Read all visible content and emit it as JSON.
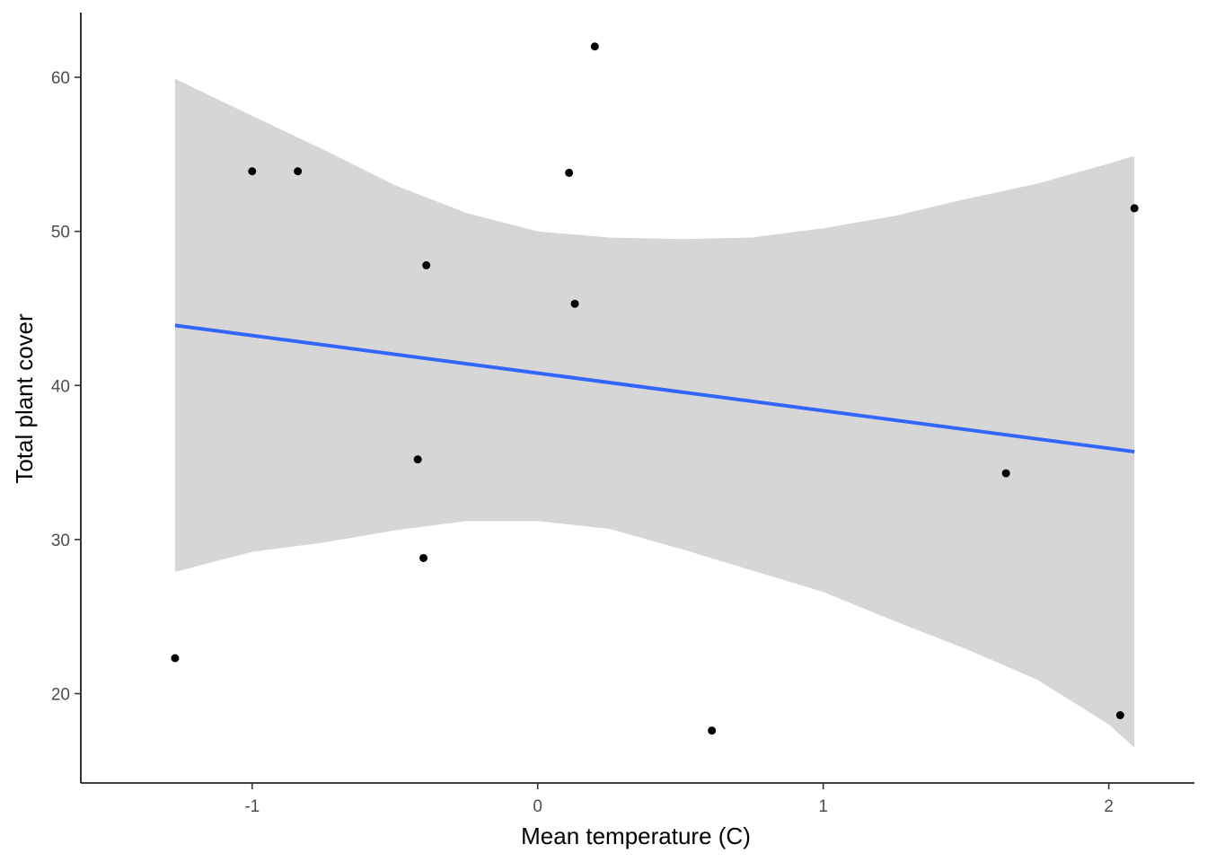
{
  "chart_data": {
    "type": "scatter",
    "title": "",
    "xlabel": "Mean temperature (C)",
    "ylabel": "Total plant cover",
    "xlim": [
      -1.6,
      2.3
    ],
    "ylim": [
      14.2,
      64.2
    ],
    "x_ticks": [
      -1,
      0,
      1,
      2
    ],
    "x_tick_labels": [
      "-1",
      "0",
      "1",
      "2"
    ],
    "y_ticks": [
      20,
      30,
      40,
      50,
      60
    ],
    "y_tick_labels": [
      "20",
      "30",
      "40",
      "50",
      "60"
    ],
    "grid": false,
    "legend": "none",
    "points": [
      {
        "x": -1.27,
        "y": 22.3
      },
      {
        "x": -1.0,
        "y": 53.9
      },
      {
        "x": -0.84,
        "y": 53.9
      },
      {
        "x": -0.39,
        "y": 47.8
      },
      {
        "x": -0.42,
        "y": 35.2
      },
      {
        "x": -0.4,
        "y": 28.8
      },
      {
        "x": 0.11,
        "y": 53.8
      },
      {
        "x": 0.13,
        "y": 45.3
      },
      {
        "x": 0.2,
        "y": 62.0
      },
      {
        "x": 0.61,
        "y": 17.6
      },
      {
        "x": 1.64,
        "y": 34.3
      },
      {
        "x": 2.04,
        "y": 18.6
      },
      {
        "x": 2.09,
        "y": 51.5
      }
    ],
    "fit": {
      "method": "linear",
      "x": [
        -1.27,
        2.09
      ],
      "y": [
        43.9,
        35.7
      ],
      "ci_x": [
        -1.27,
        -1.0,
        -0.75,
        -0.5,
        -0.25,
        0.0,
        0.25,
        0.5,
        0.75,
        1.0,
        1.25,
        1.5,
        1.75,
        2.0,
        2.09
      ],
      "ci_upper": [
        59.9,
        57.5,
        55.3,
        53.0,
        51.2,
        50.0,
        49.6,
        49.5,
        49.6,
        50.2,
        51.0,
        52.1,
        53.1,
        54.4,
        54.9
      ],
      "ci_lower": [
        27.9,
        29.2,
        29.8,
        30.6,
        31.2,
        31.2,
        30.7,
        29.4,
        28.0,
        26.6,
        24.7,
        22.9,
        20.9,
        18.0,
        16.5
      ]
    },
    "colors": {
      "points": "#000000",
      "fit_line": "#3366ff",
      "ci_band": "#d6d6d6",
      "axis": "#000000",
      "tick_label": "#4d4d4d"
    }
  }
}
